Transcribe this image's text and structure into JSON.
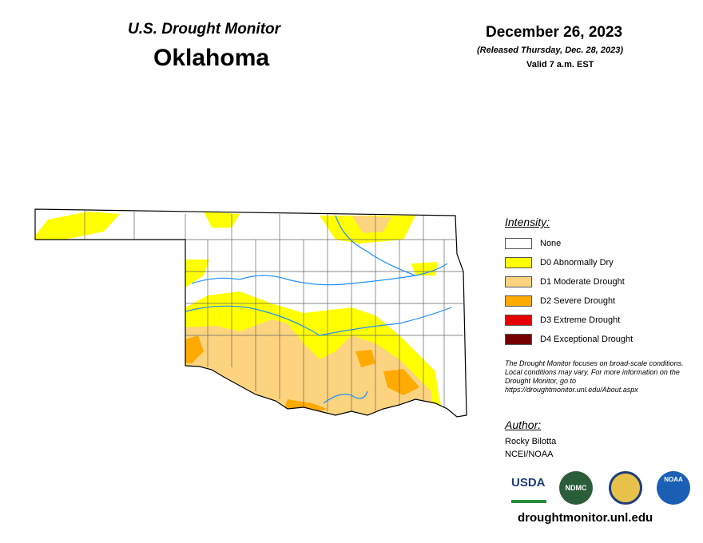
{
  "header": {
    "title": "U.S. Drought Monitor",
    "state": "Oklahoma",
    "date": "December 26, 2023",
    "released": "(Released Thursday, Dec. 28, 2023)",
    "valid": "Valid 7 a.m. EST"
  },
  "legend": {
    "title": "Intensity:",
    "items": [
      {
        "label": "None",
        "color": "#ffffff"
      },
      {
        "label": "D0 Abnormally Dry",
        "color": "#ffff00"
      },
      {
        "label": "D1 Moderate Drought",
        "color": "#fcd37f"
      },
      {
        "label": "D2 Severe Drought",
        "color": "#ffaa00"
      },
      {
        "label": "D3 Extreme Drought",
        "color": "#e60000"
      },
      {
        "label": "D4 Exceptional Drought",
        "color": "#730000"
      }
    ]
  },
  "note": "The Drought Monitor focuses on broad-scale conditions. Local conditions may vary. For more information on the Drought Monitor, go to https://droughtmonitor.unl.edu/About.aspx",
  "author": {
    "title": "Author:",
    "name": "Rocky Bilotta",
    "org": "NCEI/NOAA"
  },
  "logos": [
    "USDA",
    "NDMC",
    "NOAA"
  ],
  "url": "droughtmonitor.unl.edu"
}
